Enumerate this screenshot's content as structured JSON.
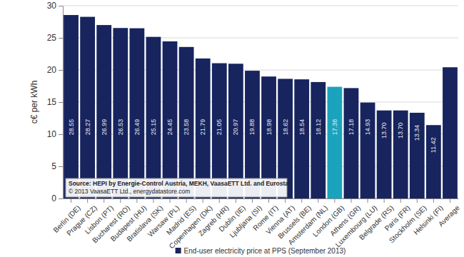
{
  "chart_data": {
    "type": "bar",
    "y_label": "c€ per kWh",
    "categories": [
      "Berlin (DE)",
      "Prague (CZ)",
      "Lisbon (PT)",
      "Bucharest (RO)",
      "Budapest (HU)",
      "Bratislava (SK)",
      "Warsaw (PL)",
      "Madrid (ES)",
      "Copenhagen (DK)",
      "Zagreb (HR)",
      "Dublin (IE)",
      "Ljubljana (SI)",
      "Rome (IT)",
      "Vienna (AT)",
      "Brussels (BE)",
      "Amsterdam (NL)",
      "London (GB)",
      "Athens (GR)",
      "Luxembourg (LU)",
      "Belgrade (RS)",
      "Paris (FR)",
      "Stockholm (SE)",
      "Helsinki (FI)",
      "Average"
    ],
    "series": [
      {
        "name": "End-user electricity price at PPS (September 2013)",
        "color": "#17245e",
        "values": [
          28.55,
          28.27,
          26.99,
          26.53,
          26.49,
          25.15,
          24.45,
          23.58,
          21.79,
          21.05,
          20.97,
          19.88,
          18.98,
          18.62,
          18.54,
          18.12,
          17.38,
          17.18,
          14.93,
          13.7,
          13.7,
          13.34,
          11.42,
          20.42
        ],
        "value_labels": [
          "28.55",
          "28.27",
          "26.99",
          "26.53",
          "26.49",
          "25.15",
          "24.45",
          "23.58",
          "21.79",
          "21.05",
          "20.97",
          "19.88",
          "18.98",
          "18.62",
          "18.54",
          "18.12",
          "17.38",
          "17.18",
          "14.93",
          "13.70",
          "13.70",
          "13.34",
          "11.42",
          null
        ],
        "colors": [
          "#17245e",
          "#17245e",
          "#17245e",
          "#17245e",
          "#17245e",
          "#17245e",
          "#17245e",
          "#17245e",
          "#17245e",
          "#17245e",
          "#17245e",
          "#17245e",
          "#17245e",
          "#17245e",
          "#17245e",
          "#17245e",
          "#1aa3bd",
          "#17245e",
          "#17245e",
          "#17245e",
          "#17245e",
          "#17245e",
          "#17245e",
          "#17245e"
        ]
      }
    ],
    "ylim": [
      0,
      30
    ],
    "yticks": [
      0,
      5,
      10,
      15,
      20,
      25,
      30
    ],
    "grid": true,
    "data_labels": true,
    "legend": "bottom",
    "annotations": [
      "Source: HEPI by Energie-Control Austria, MEKH, VaasaETT Ltd. and Eurostat",
      "© 2013 VaasaETT Ltd., energydatastore.com"
    ]
  }
}
